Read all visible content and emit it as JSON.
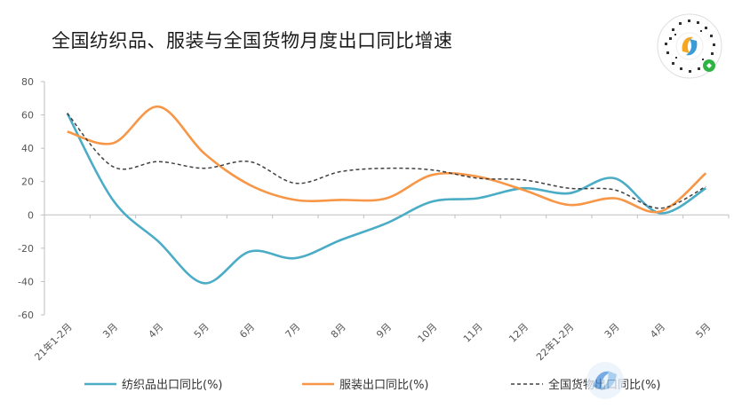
{
  "title": "全国纺织品、服装与全国货物月度出口同比增速",
  "chart_data": {
    "type": "line",
    "categories": [
      "21年1-2月",
      "3月",
      "4月",
      "5月",
      "6月",
      "7月",
      "8月",
      "9月",
      "10月",
      "11月",
      "12月",
      "22年1-2月",
      "3月",
      "4月",
      "5月"
    ],
    "ylim": [
      -60,
      80
    ],
    "yticks": [
      80,
      60,
      40,
      20,
      0,
      -20,
      -40,
      -60
    ],
    "grid": false,
    "legend_position": "bottom",
    "series": [
      {
        "name": "纺织品出口同比(%)",
        "color": "#4bacc6",
        "dash": "solid",
        "values": [
          61,
          9,
          -16,
          -41,
          -22,
          -26,
          -15,
          -5,
          8,
          10,
          16,
          13,
          22,
          1,
          16
        ]
      },
      {
        "name": "服装出口同比(%)",
        "color": "#f79646",
        "dash": "solid",
        "values": [
          50,
          43,
          65,
          37,
          18,
          9,
          9,
          10,
          24,
          23,
          15,
          6,
          10,
          2,
          25
        ]
      },
      {
        "name": "全国货物出口同比(%)",
        "color": "#404040",
        "dash": "dashed",
        "values": [
          61,
          29,
          32,
          28,
          32,
          19,
          26,
          28,
          27,
          22,
          21,
          16,
          15,
          4,
          17
        ]
      }
    ]
  }
}
